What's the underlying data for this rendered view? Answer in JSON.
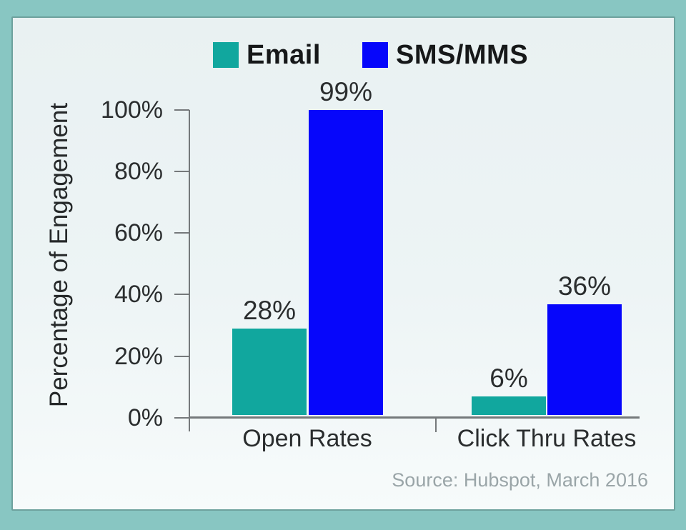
{
  "chart_data": {
    "type": "bar",
    "categories": [
      "Open Rates",
      "Click Thru Rates"
    ],
    "series": [
      {
        "name": "Email",
        "color": "#11a79e",
        "values": [
          28,
          6
        ]
      },
      {
        "name": "SMS/MMS",
        "color": "#0606fb",
        "values": [
          99,
          36
        ]
      }
    ],
    "bar_labels": [
      "28%",
      "99%",
      "6%",
      "36%"
    ],
    "ylabel": "Percentage of Engagement",
    "y_ticks": [
      "100%",
      "80%",
      "60%",
      "40%",
      "20%",
      "0%"
    ],
    "ylim": [
      0,
      100
    ],
    "grid": false,
    "legend_position": "top",
    "source": "Source: Hubspot, March 2016"
  },
  "colors": {
    "frame": "#88c6c2",
    "panel_background": "#e9f1f2",
    "panel_edge": "#6da19d",
    "axis": "#75797b",
    "label_text": "#2a2d2e",
    "legend_text": "#161819",
    "source_text": "#9aa5a8"
  }
}
